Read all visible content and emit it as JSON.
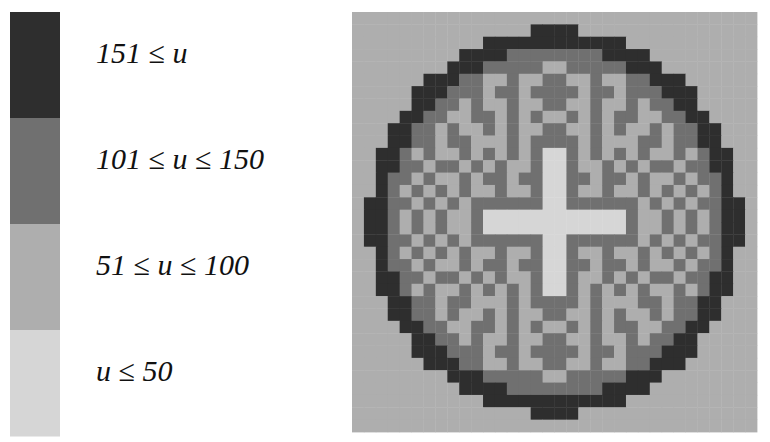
{
  "chart_data": {
    "type": "heatmap",
    "tick_labels": false,
    "color_levels": [
      {
        "label": "u ≤ 50",
        "color": "#d6d6d6"
      },
      {
        "label": "51 ≤ u ≤ 100",
        "color": "#aeaeae"
      },
      {
        "label": "101 ≤ u ≤ 150",
        "color": "#707070"
      },
      {
        "label": "151 ≤ u",
        "color": "#2e2e2e"
      }
    ],
    "cells": [
      [
        1,
        1,
        1,
        1,
        1,
        1,
        1,
        1,
        1,
        1,
        1,
        1,
        1,
        1,
        1,
        1,
        1,
        1,
        1,
        1,
        1,
        1,
        1,
        1,
        1,
        1,
        1,
        1,
        1,
        1,
        1,
        1,
        1,
        1
      ],
      [
        1,
        1,
        1,
        1,
        1,
        1,
        1,
        1,
        1,
        1,
        1,
        1,
        1,
        1,
        1,
        3,
        3,
        3,
        3,
        1,
        1,
        1,
        1,
        1,
        1,
        1,
        1,
        1,
        1,
        1,
        1,
        1,
        1,
        1
      ],
      [
        1,
        1,
        1,
        1,
        1,
        1,
        1,
        1,
        1,
        1,
        1,
        3,
        3,
        3,
        3,
        3,
        3,
        3,
        3,
        3,
        3,
        3,
        3,
        1,
        1,
        1,
        1,
        1,
        1,
        1,
        1,
        1,
        1,
        1
      ],
      [
        1,
        1,
        1,
        1,
        1,
        1,
        1,
        1,
        1,
        3,
        3,
        3,
        3,
        2,
        2,
        2,
        2,
        2,
        2,
        2,
        2,
        3,
        3,
        3,
        3,
        1,
        1,
        1,
        1,
        1,
        1,
        1,
        1,
        1
      ],
      [
        1,
        1,
        1,
        1,
        1,
        1,
        1,
        1,
        3,
        3,
        3,
        2,
        2,
        2,
        2,
        2,
        1,
        1,
        2,
        2,
        2,
        2,
        2,
        3,
        3,
        3,
        1,
        1,
        1,
        1,
        1,
        1,
        1,
        1
      ],
      [
        1,
        1,
        1,
        1,
        1,
        1,
        3,
        3,
        3,
        2,
        2,
        1,
        1,
        2,
        1,
        1,
        2,
        2,
        1,
        1,
        2,
        1,
        1,
        2,
        2,
        3,
        3,
        3,
        1,
        1,
        1,
        1,
        1,
        1
      ],
      [
        1,
        1,
        1,
        1,
        1,
        3,
        3,
        3,
        2,
        2,
        2,
        1,
        2,
        2,
        1,
        2,
        2,
        2,
        2,
        1,
        2,
        2,
        1,
        2,
        2,
        2,
        3,
        3,
        3,
        1,
        1,
        1,
        1,
        1
      ],
      [
        1,
        1,
        1,
        1,
        1,
        3,
        3,
        2,
        2,
        1,
        2,
        1,
        1,
        2,
        1,
        1,
        2,
        2,
        1,
        1,
        2,
        1,
        1,
        2,
        1,
        2,
        2,
        3,
        3,
        1,
        1,
        1,
        1,
        1
      ],
      [
        1,
        1,
        1,
        1,
        3,
        3,
        2,
        2,
        1,
        1,
        2,
        2,
        1,
        2,
        1,
        2,
        1,
        1,
        2,
        1,
        2,
        1,
        2,
        2,
        1,
        1,
        2,
        2,
        3,
        3,
        1,
        1,
        1,
        1
      ],
      [
        1,
        1,
        1,
        3,
        3,
        2,
        2,
        1,
        2,
        1,
        1,
        2,
        1,
        2,
        1,
        1,
        2,
        2,
        1,
        1,
        2,
        1,
        2,
        1,
        1,
        2,
        1,
        2,
        2,
        3,
        3,
        1,
        1,
        1
      ],
      [
        1,
        1,
        1,
        3,
        3,
        2,
        2,
        1,
        2,
        2,
        1,
        1,
        1,
        2,
        1,
        2,
        2,
        2,
        2,
        1,
        2,
        1,
        1,
        1,
        2,
        2,
        1,
        2,
        2,
        3,
        3,
        1,
        1,
        1
      ],
      [
        1,
        1,
        3,
        3,
        2,
        1,
        2,
        1,
        1,
        2,
        1,
        2,
        1,
        2,
        1,
        2,
        0,
        0,
        2,
        1,
        2,
        1,
        2,
        1,
        2,
        1,
        1,
        2,
        1,
        2,
        3,
        3,
        1,
        1
      ],
      [
        1,
        1,
        3,
        3,
        2,
        2,
        1,
        2,
        2,
        1,
        2,
        1,
        2,
        1,
        1,
        2,
        0,
        0,
        2,
        1,
        1,
        2,
        1,
        2,
        1,
        2,
        2,
        1,
        2,
        2,
        3,
        3,
        1,
        1
      ],
      [
        1,
        1,
        3,
        2,
        2,
        1,
        2,
        1,
        1,
        2,
        1,
        2,
        2,
        1,
        2,
        2,
        0,
        0,
        2,
        2,
        1,
        2,
        2,
        1,
        2,
        1,
        1,
        2,
        1,
        2,
        2,
        3,
        1,
        1
      ],
      [
        1,
        1,
        3,
        2,
        1,
        2,
        1,
        2,
        1,
        2,
        1,
        1,
        2,
        1,
        1,
        2,
        0,
        0,
        2,
        1,
        1,
        2,
        1,
        1,
        2,
        1,
        2,
        1,
        2,
        1,
        2,
        3,
        1,
        1
      ],
      [
        1,
        3,
        3,
        2,
        2,
        1,
        2,
        1,
        2,
        1,
        2,
        2,
        2,
        2,
        2,
        2,
        0,
        0,
        2,
        2,
        2,
        2,
        2,
        2,
        1,
        2,
        1,
        2,
        1,
        2,
        2,
        3,
        3,
        1
      ],
      [
        1,
        3,
        3,
        2,
        1,
        2,
        1,
        2,
        1,
        1,
        2,
        0,
        0,
        0,
        0,
        0,
        0,
        0,
        0,
        0,
        0,
        0,
        0,
        2,
        1,
        1,
        2,
        1,
        2,
        1,
        2,
        3,
        3,
        1
      ],
      [
        1,
        3,
        3,
        2,
        1,
        2,
        1,
        2,
        1,
        1,
        2,
        0,
        0,
        0,
        0,
        0,
        0,
        0,
        0,
        0,
        0,
        0,
        0,
        2,
        1,
        1,
        2,
        1,
        2,
        1,
        2,
        3,
        3,
        1
      ],
      [
        1,
        3,
        3,
        2,
        2,
        1,
        2,
        1,
        2,
        1,
        2,
        2,
        2,
        2,
        2,
        2,
        0,
        0,
        2,
        2,
        2,
        2,
        2,
        2,
        1,
        2,
        1,
        2,
        1,
        2,
        2,
        3,
        3,
        1
      ],
      [
        1,
        1,
        3,
        2,
        1,
        2,
        1,
        2,
        1,
        2,
        1,
        1,
        2,
        1,
        1,
        2,
        0,
        0,
        2,
        1,
        1,
        2,
        1,
        1,
        2,
        1,
        2,
        1,
        2,
        1,
        2,
        3,
        1,
        1
      ],
      [
        1,
        1,
        3,
        2,
        2,
        1,
        2,
        1,
        1,
        2,
        1,
        2,
        2,
        1,
        2,
        2,
        0,
        0,
        2,
        2,
        1,
        2,
        2,
        1,
        2,
        1,
        1,
        2,
        1,
        2,
        2,
        3,
        1,
        1
      ],
      [
        1,
        1,
        3,
        3,
        2,
        2,
        1,
        2,
        2,
        1,
        2,
        1,
        2,
        1,
        1,
        2,
        0,
        0,
        2,
        1,
        1,
        2,
        1,
        2,
        1,
        2,
        2,
        1,
        2,
        2,
        3,
        3,
        1,
        1
      ],
      [
        1,
        1,
        3,
        3,
        2,
        1,
        2,
        1,
        1,
        2,
        1,
        2,
        1,
        2,
        1,
        2,
        0,
        0,
        2,
        1,
        2,
        1,
        2,
        1,
        2,
        1,
        1,
        2,
        1,
        2,
        3,
        3,
        1,
        1
      ],
      [
        1,
        1,
        1,
        3,
        3,
        2,
        2,
        1,
        2,
        2,
        1,
        1,
        1,
        2,
        1,
        2,
        2,
        2,
        2,
        1,
        2,
        1,
        1,
        1,
        2,
        2,
        1,
        2,
        2,
        3,
        3,
        1,
        1,
        1
      ],
      [
        1,
        1,
        1,
        3,
        3,
        2,
        2,
        1,
        2,
        1,
        1,
        2,
        1,
        2,
        1,
        1,
        2,
        2,
        1,
        1,
        2,
        1,
        2,
        1,
        1,
        2,
        1,
        2,
        2,
        3,
        3,
        1,
        1,
        1
      ],
      [
        1,
        1,
        1,
        1,
        3,
        3,
        2,
        2,
        1,
        1,
        2,
        2,
        1,
        2,
        1,
        2,
        1,
        1,
        2,
        1,
        2,
        1,
        2,
        2,
        1,
        1,
        2,
        2,
        3,
        3,
        1,
        1,
        1,
        1
      ],
      [
        1,
        1,
        1,
        1,
        1,
        3,
        3,
        2,
        2,
        1,
        2,
        1,
        1,
        2,
        1,
        1,
        2,
        2,
        1,
        1,
        2,
        1,
        1,
        2,
        1,
        2,
        2,
        3,
        3,
        1,
        1,
        1,
        1,
        1
      ],
      [
        1,
        1,
        1,
        1,
        1,
        3,
        3,
        3,
        2,
        2,
        2,
        1,
        2,
        2,
        1,
        2,
        2,
        2,
        2,
        1,
        2,
        2,
        1,
        2,
        2,
        2,
        3,
        3,
        3,
        1,
        1,
        1,
        1,
        1
      ],
      [
        1,
        1,
        1,
        1,
        1,
        1,
        3,
        3,
        3,
        2,
        2,
        1,
        1,
        2,
        1,
        1,
        2,
        2,
        1,
        1,
        2,
        1,
        1,
        2,
        2,
        3,
        3,
        3,
        1,
        1,
        1,
        1,
        1,
        1
      ],
      [
        1,
        1,
        1,
        1,
        1,
        1,
        1,
        1,
        3,
        3,
        3,
        2,
        2,
        2,
        2,
        2,
        1,
        1,
        2,
        2,
        2,
        2,
        2,
        3,
        3,
        3,
        1,
        1,
        1,
        1,
        1,
        1,
        1,
        1
      ],
      [
        1,
        1,
        1,
        1,
        1,
        1,
        1,
        1,
        1,
        3,
        3,
        3,
        3,
        2,
        2,
        2,
        2,
        2,
        2,
        2,
        2,
        3,
        3,
        3,
        3,
        1,
        1,
        1,
        1,
        1,
        1,
        1,
        1,
        1
      ],
      [
        1,
        1,
        1,
        1,
        1,
        1,
        1,
        1,
        1,
        1,
        1,
        3,
        3,
        3,
        3,
        3,
        3,
        3,
        3,
        3,
        3,
        3,
        3,
        1,
        1,
        1,
        1,
        1,
        1,
        1,
        1,
        1,
        1,
        1
      ],
      [
        1,
        1,
        1,
        1,
        1,
        1,
        1,
        1,
        1,
        1,
        1,
        1,
        1,
        1,
        1,
        3,
        3,
        3,
        3,
        1,
        1,
        1,
        1,
        1,
        1,
        1,
        1,
        1,
        1,
        1,
        1,
        1,
        1,
        1
      ],
      [
        1,
        1,
        1,
        1,
        1,
        1,
        1,
        1,
        1,
        1,
        1,
        1,
        1,
        1,
        1,
        1,
        1,
        1,
        1,
        1,
        1,
        1,
        1,
        1,
        1,
        1,
        1,
        1,
        1,
        1,
        1,
        1,
        1,
        1
      ]
    ]
  }
}
